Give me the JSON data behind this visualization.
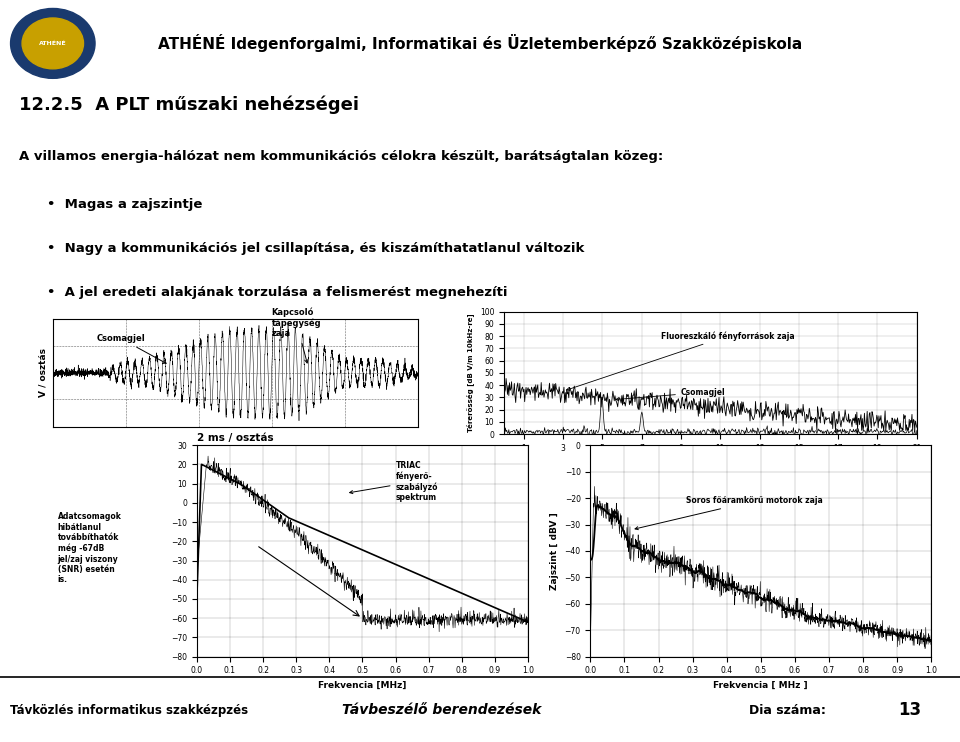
{
  "title": "ATHÉNÉ Idegenforgalmi, Informatikai és Üzletemberképző Szakközépiskola",
  "section_title": "12.2.5  A PLT műszaki nehézségei",
  "bullet0": "A villamos energia-hálózat nem kommunikációs célokra készült, barátságtalan közeg:",
  "bullet1": "Magas a zajszintje",
  "bullet2": "Nagy a kommunikációs jel csillapítása, és kiszámíthatatlanul változik",
  "bullet3": "A jel eredeti alakjának torzulása a felismerést megnehezíti",
  "footer_left": "Távközlés informatikus szakkézpzés",
  "footer_center": "Távbeszélő berendezések",
  "footer_page_label": "Dia száma:",
  "footer_page_num": "13",
  "bg_color": "#b8dde8",
  "white": "#ffffff",
  "gray_footer": "#c8c8c8",
  "black": "#000000"
}
